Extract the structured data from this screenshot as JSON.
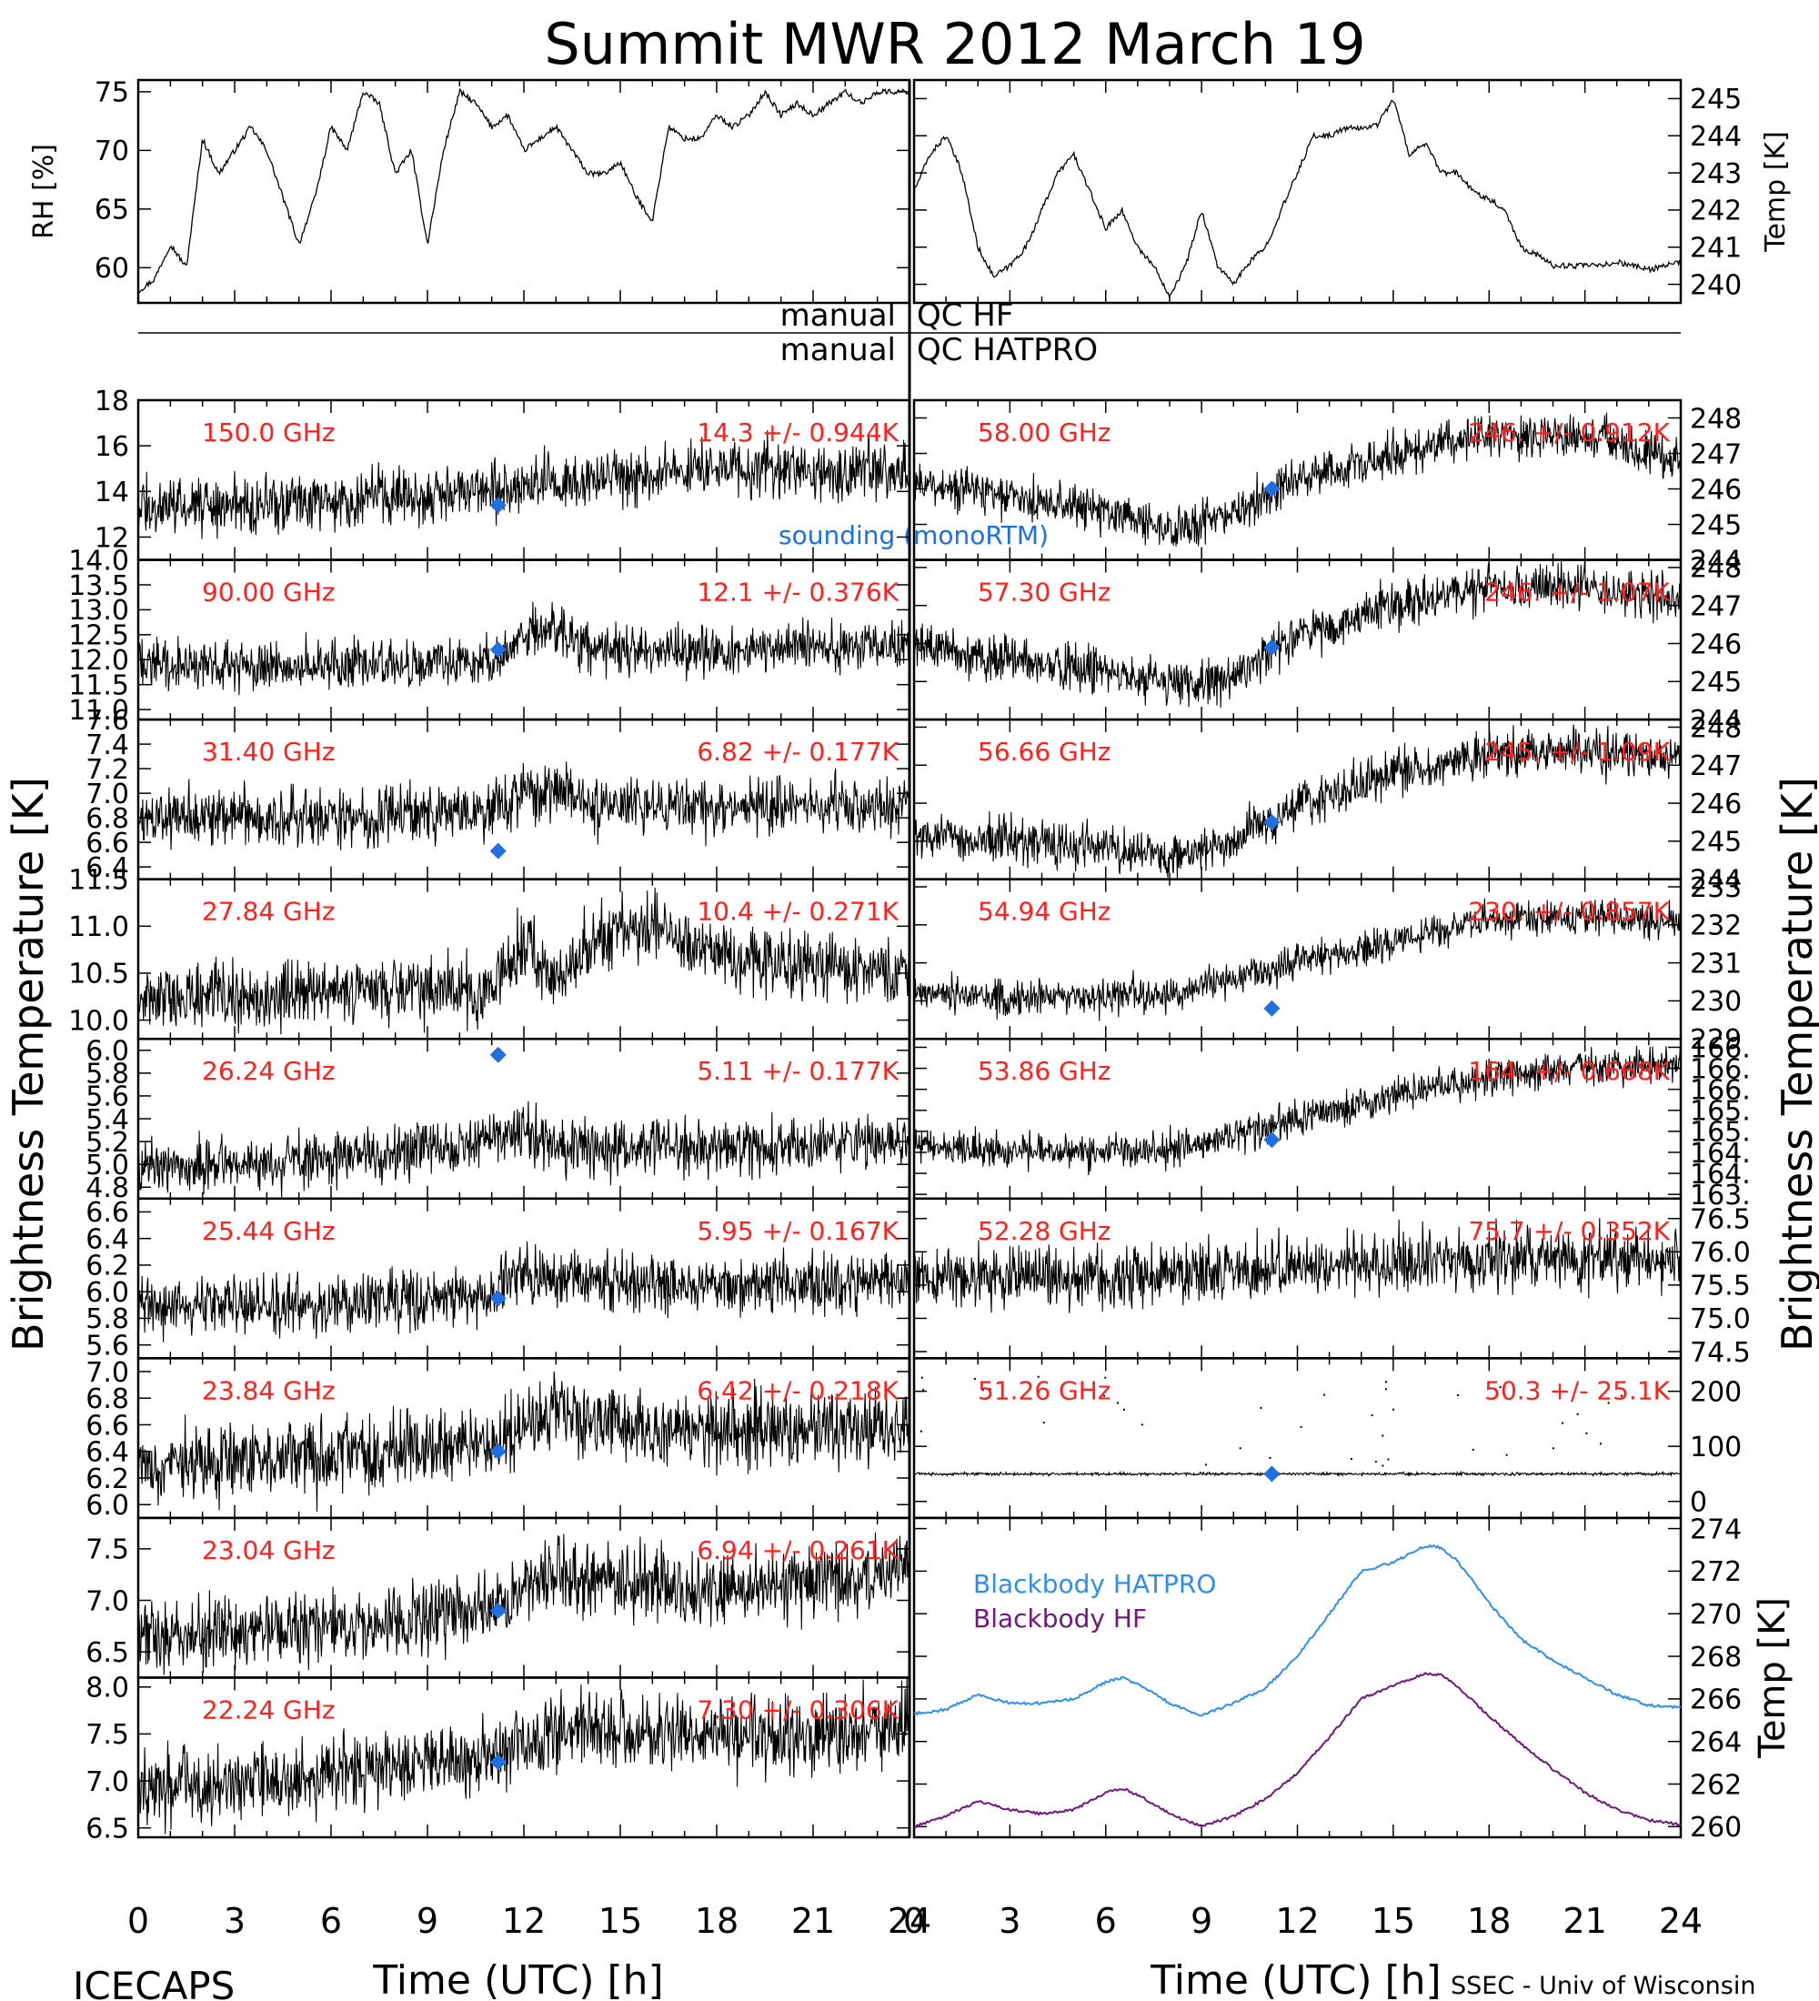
{
  "figure": {
    "title": "Summit MWR 2012 March 19",
    "footer_left": "ICECAPS",
    "footer_right": "SSEC - Univ of Wisconsin",
    "left_ylabel": "Brightness Temperature [K]",
    "right_ylabel": "Brightness Temperature [K]",
    "xlabel": "Time (UTC) [h]",
    "qc_row1_left": "manual",
    "qc_row1_right": "QC HF",
    "qc_row2_left": "manual",
    "qc_row2_right": "QC HATPRO",
    "sounding_label": "sounding (monoRTM)",
    "colors": {
      "sounding": "#1f6fe0",
      "label_red": "#ff2020",
      "hatpro": "#2f8ef0",
      "hf": "#6e1a7a",
      "trace": "#000000"
    }
  },
  "chart_data": [
    {
      "id": "rh",
      "type": "line",
      "ylabel": "RH [%]",
      "xlim": [
        0,
        24
      ],
      "ylim": [
        57,
        76
      ],
      "yticks": [
        60,
        65,
        70,
        75
      ],
      "xticks": [
        0,
        3,
        6,
        9,
        12,
        15,
        18,
        21,
        24
      ],
      "x": [
        0,
        0.5,
        1,
        1.5,
        2,
        2.5,
        3,
        3.5,
        4,
        4.5,
        5,
        5.5,
        6,
        6.5,
        7,
        7.5,
        8,
        8.5,
        9,
        9.5,
        10,
        10.5,
        11,
        11.5,
        12,
        12.5,
        13,
        13.5,
        14,
        14.5,
        15,
        15.5,
        16,
        16.5,
        17,
        17.5,
        18,
        18.5,
        19,
        19.5,
        20,
        20.5,
        21,
        21.5,
        22,
        22.5,
        23,
        23.5,
        24
      ],
      "y": [
        58,
        59,
        62,
        60,
        71,
        68,
        70,
        72,
        70,
        66,
        62,
        66,
        72,
        70,
        75,
        74,
        68,
        70,
        62,
        70,
        75,
        74,
        72,
        73,
        70,
        71,
        72,
        70,
        68,
        68,
        69,
        66,
        64,
        72,
        71,
        71,
        73,
        72,
        73,
        75,
        73,
        74,
        73,
        74,
        75,
        74,
        75,
        75,
        75
      ]
    },
    {
      "id": "temp",
      "type": "line",
      "ylabel": "Temp [K]",
      "xlim": [
        0,
        24
      ],
      "ylim": [
        239.5,
        245.5
      ],
      "yticks": [
        240,
        241,
        242,
        243,
        244,
        245
      ],
      "x": [
        0,
        0.5,
        1,
        1.5,
        2,
        2.5,
        3,
        3.5,
        4,
        4.5,
        5,
        5.5,
        6,
        6.5,
        7,
        7.5,
        8,
        8.5,
        9,
        9.5,
        10,
        10.5,
        11,
        11.5,
        12,
        12.5,
        13,
        13.5,
        14,
        14.5,
        15,
        15.5,
        16,
        16.5,
        17,
        17.5,
        18,
        18.5,
        19,
        19.5,
        20,
        20.5,
        21,
        21.5,
        22,
        22.5,
        23,
        23.5,
        24
      ],
      "y": [
        242.5,
        243.5,
        244,
        243,
        241,
        240.2,
        240.5,
        241,
        242,
        243,
        243.5,
        242.5,
        241.5,
        242,
        241,
        240.5,
        239.7,
        240.5,
        242,
        240.5,
        240,
        240.6,
        241,
        242,
        243,
        244,
        244,
        244.2,
        244.2,
        244.3,
        245,
        243.5,
        243.8,
        243,
        243,
        242.5,
        242.3,
        242,
        241,
        240.8,
        240.5,
        240.5,
        240.5,
        240.5,
        240.6,
        240.5,
        240.4,
        240.5,
        240.6
      ]
    },
    {
      "id": "tb_150.0",
      "type": "line",
      "label": "150.0 GHz",
      "stats": "14.3 +/- 0.944K",
      "ylim": [
        11,
        18
      ],
      "yticks": [
        12,
        14,
        16,
        18
      ],
      "yticklabels": [
        "12",
        "14",
        "16",
        "18"
      ],
      "noise": 0.944,
      "sounding": {
        "x": 11.2,
        "y": 13.4
      },
      "x": [
        0,
        6,
        12,
        18,
        24
      ],
      "y": [
        13.3,
        13.6,
        14.3,
        15.0,
        14.8
      ]
    },
    {
      "id": "tb_90.00",
      "type": "line",
      "label": "90.00 GHz",
      "stats": "12.1 +/- 0.376K",
      "ylim": [
        10.8,
        14.0
      ],
      "yticks": [
        11.0,
        11.5,
        12.0,
        12.5,
        13.0,
        13.5,
        14.0
      ],
      "yticklabels": [
        "11.0",
        "11.5",
        "12.0",
        "12.5",
        "13.0",
        "13.5",
        "14.0"
      ],
      "noise": 0.376,
      "sounding": {
        "x": 11.2,
        "y": 12.2
      },
      "x": [
        0,
        6,
        11,
        12,
        13,
        14,
        18,
        24
      ],
      "y": [
        11.9,
        11.9,
        12.0,
        12.5,
        12.6,
        12.2,
        12.2,
        12.3
      ]
    },
    {
      "id": "tb_31.40",
      "type": "line",
      "label": "31.40 GHz",
      "stats": "6.82 +/- 0.177K",
      "ylim": [
        6.3,
        7.6
      ],
      "yticks": [
        6.4,
        6.6,
        6.8,
        7.0,
        7.2,
        7.4,
        7.6
      ],
      "yticklabels": [
        "6.4",
        "6.6",
        "6.8",
        "7.0",
        "7.2",
        "7.4",
        "7.6"
      ],
      "noise": 0.177,
      "sounding": {
        "x": 11.2,
        "y": 6.53
      },
      "x": [
        0,
        6,
        11,
        12,
        13,
        14,
        18,
        24
      ],
      "y": [
        6.8,
        6.8,
        6.85,
        7.0,
        7.0,
        6.9,
        6.9,
        6.9
      ]
    },
    {
      "id": "tb_27.84",
      "type": "line",
      "label": "27.84 GHz",
      "stats": "10.4 +/- 0.271K",
      "ylim": [
        9.8,
        11.5
      ],
      "yticks": [
        10.0,
        10.5,
        11.0,
        11.5
      ],
      "yticklabels": [
        "10.0",
        "10.5",
        "11.0",
        "11.5"
      ],
      "noise": 0.271,
      "sounding": null,
      "x": [
        0,
        6,
        11,
        12,
        13,
        14,
        16,
        18,
        21,
        24
      ],
      "y": [
        10.2,
        10.3,
        10.35,
        10.8,
        10.4,
        10.8,
        11.0,
        10.7,
        10.6,
        10.5
      ]
    },
    {
      "id": "tb_26.24",
      "type": "line",
      "label": "26.24 GHz",
      "stats": "5.11 +/- 0.177K",
      "ylim": [
        4.7,
        6.1
      ],
      "yticks": [
        4.8,
        5.0,
        5.2,
        5.4,
        5.6,
        5.8,
        6.0
      ],
      "yticklabels": [
        "4.8",
        "5.0",
        "5.2",
        "5.4",
        "5.6",
        "5.8",
        "6.0"
      ],
      "noise": 0.177,
      "sounding": {
        "x": 11.2,
        "y": 5.96
      },
      "x": [
        0,
        6,
        11,
        12,
        13,
        18,
        24
      ],
      "y": [
        5.0,
        5.05,
        5.2,
        5.3,
        5.15,
        5.15,
        5.2
      ]
    },
    {
      "id": "tb_25.44",
      "type": "line",
      "label": "25.44 GHz",
      "stats": "5.95 +/- 0.167K",
      "ylim": [
        5.5,
        6.7
      ],
      "yticks": [
        5.6,
        5.8,
        6.0,
        6.2,
        6.4,
        6.6
      ],
      "yticklabels": [
        "5.6",
        "5.8",
        "6.0",
        "6.2",
        "6.4",
        "6.6"
      ],
      "noise": 0.167,
      "sounding": {
        "x": 11.2,
        "y": 5.95
      },
      "x": [
        0,
        6,
        11,
        12,
        13,
        18,
        24
      ],
      "y": [
        5.9,
        5.9,
        6.0,
        6.15,
        6.1,
        6.05,
        6.1
      ]
    },
    {
      "id": "tb_23.84",
      "type": "line",
      "label": "23.84 GHz",
      "stats": "6.42 +/- 0.218K",
      "ylim": [
        5.9,
        7.1
      ],
      "yticks": [
        6.0,
        6.2,
        6.4,
        6.6,
        6.8,
        7.0
      ],
      "yticklabels": [
        "6.0",
        "6.2",
        "6.4",
        "6.6",
        "6.8",
        "7.0"
      ],
      "noise": 0.218,
      "sounding": {
        "x": 11.2,
        "y": 6.4
      },
      "x": [
        0,
        6,
        11,
        12,
        13,
        14,
        18,
        24
      ],
      "y": [
        6.3,
        6.35,
        6.45,
        6.6,
        6.75,
        6.6,
        6.55,
        6.6
      ]
    },
    {
      "id": "tb_23.04",
      "type": "line",
      "label": "23.04 GHz",
      "stats": "6.94 +/- 0.261K",
      "ylim": [
        6.25,
        7.8
      ],
      "yticks": [
        6.5,
        7.0,
        7.5
      ],
      "yticklabels": [
        "6.5",
        "7.0",
        "7.5"
      ],
      "noise": 0.261,
      "sounding": {
        "x": 11.2,
        "y": 6.9
      },
      "x": [
        0,
        6,
        11,
        12,
        13,
        14,
        18,
        24
      ],
      "y": [
        6.65,
        6.75,
        6.9,
        7.1,
        7.25,
        7.2,
        7.1,
        7.25
      ]
    },
    {
      "id": "tb_22.24",
      "type": "line",
      "label": "22.24 GHz",
      "stats": "7.30 +/- 0.306K",
      "ylim": [
        6.4,
        8.1
      ],
      "yticks": [
        6.5,
        7.0,
        7.5,
        8.0
      ],
      "yticklabels": [
        "6.5",
        "7.0",
        "7.5",
        "8.0"
      ],
      "noise": 0.306,
      "sounding": {
        "x": 11.2,
        "y": 7.2
      },
      "x": [
        0,
        6,
        11,
        12,
        13,
        14,
        18,
        24
      ],
      "y": [
        6.9,
        7.05,
        7.25,
        7.4,
        7.5,
        7.55,
        7.45,
        7.6
      ]
    },
    {
      "id": "tb_58.00",
      "type": "line",
      "label": "58.00 GHz",
      "stats": "246. +/- 0.912K",
      "ylim": [
        244,
        248.5
      ],
      "yticks": [
        244,
        245,
        246,
        247,
        248
      ],
      "yticklabels": [
        "244",
        "245",
        "246",
        "247",
        "248"
      ],
      "noise": 0.45,
      "sounding": {
        "x": 11.2,
        "y": 246.0
      },
      "x": [
        0,
        3,
        6,
        8,
        10,
        12,
        15,
        18,
        21,
        24
      ],
      "y": [
        246.2,
        245.8,
        245.4,
        244.8,
        245.3,
        246.3,
        247.0,
        247.5,
        247.5,
        246.8
      ]
    },
    {
      "id": "tb_57.30",
      "type": "line",
      "label": "57.30 GHz",
      "stats": "246. +/- 1.07K",
      "ylim": [
        244,
        248.2
      ],
      "yticks": [
        244,
        245,
        246,
        247,
        248
      ],
      "yticklabels": [
        "244",
        "245",
        "246",
        "247",
        "248"
      ],
      "noise": 0.45,
      "sounding": {
        "x": 11.2,
        "y": 245.9
      },
      "x": [
        0,
        3,
        6,
        8,
        10,
        12,
        15,
        18,
        21,
        24
      ],
      "y": [
        245.9,
        245.6,
        245.3,
        244.9,
        245.1,
        246.2,
        247.0,
        247.5,
        247.5,
        247.1
      ]
    },
    {
      "id": "tb_56.66",
      "type": "line",
      "label": "56.66 GHz",
      "stats": "245. +/- 1.09K",
      "ylim": [
        244,
        248.2
      ],
      "yticks": [
        244,
        245,
        246,
        247,
        248
      ],
      "yticklabels": [
        "244",
        "245",
        "246",
        "247",
        "248"
      ],
      "noise": 0.45,
      "sounding": {
        "x": 11.2,
        "y": 245.5
      },
      "x": [
        0,
        3,
        6,
        8,
        10,
        12,
        15,
        18,
        21,
        24
      ],
      "y": [
        245.2,
        245.0,
        244.8,
        244.6,
        245.0,
        246.0,
        246.8,
        247.3,
        247.4,
        247.2
      ]
    },
    {
      "id": "tb_54.94",
      "type": "line",
      "label": "54.94 GHz",
      "stats": "230. +/- 0.857K",
      "ylim": [
        229,
        233.2
      ],
      "yticks": [
        229,
        230,
        231,
        232,
        233
      ],
      "yticklabels": [
        "229",
        "230",
        "231",
        "232",
        "233"
      ],
      "noise": 0.35,
      "sounding": {
        "x": 11.2,
        "y": 229.8
      },
      "x": [
        0,
        3,
        6,
        8,
        10,
        12,
        15,
        18,
        21,
        24
      ],
      "y": [
        230.2,
        230.1,
        230.1,
        230.2,
        230.6,
        231.0,
        231.6,
        232.1,
        232.2,
        232.1
      ]
    },
    {
      "id": "tb_53.86",
      "type": "line",
      "label": "53.86 GHz",
      "stats": "164. +/- 0.668K",
      "ylim": [
        162.9,
        166.7
      ],
      "yticks": [
        163,
        163.5,
        164,
        164.5,
        165,
        165.5,
        166,
        166.5
      ],
      "yticklabels": [
        "163.",
        "164.",
        "164.",
        "165.",
        "165.",
        "166.",
        "166.",
        "166."
      ],
      "noise": 0.33,
      "sounding": {
        "x": 11.2,
        "y": 164.3
      },
      "x": [
        0,
        3,
        6,
        8,
        10,
        12,
        15,
        18,
        21,
        24
      ],
      "y": [
        164.2,
        164.0,
        164.0,
        164.1,
        164.4,
        164.8,
        165.3,
        165.8,
        166.0,
        166.1
      ]
    },
    {
      "id": "tb_52.28",
      "type": "line",
      "label": "52.28 GHz",
      "stats": "75.7 +/- 0.352K",
      "ylim": [
        74.4,
        76.8
      ],
      "yticks": [
        74.5,
        75.0,
        75.5,
        76.0,
        76.5
      ],
      "yticklabels": [
        "74.5",
        "75.0",
        "75.5",
        "76.0",
        "76.5"
      ],
      "noise": 0.35,
      "sounding": null,
      "x": [
        0,
        6,
        12,
        18,
        24
      ],
      "y": [
        75.6,
        75.6,
        75.8,
        75.9,
        75.9
      ]
    },
    {
      "id": "tb_51.26",
      "type": "scatter",
      "label": "51.26 GHz",
      "stats": "50.3 +/- 25.1K",
      "ylim": [
        -30,
        260
      ],
      "yticks": [
        0,
        100,
        200
      ],
      "yticklabels": [
        "0",
        "100",
        "200"
      ],
      "noise": 2,
      "sounding": {
        "x": 11.2,
        "y": 50
      },
      "x": [
        0,
        24
      ],
      "y": [
        50,
        50
      ]
    },
    {
      "id": "blackbody",
      "type": "line",
      "ylabel": "Temp [K]",
      "xlim": [
        0,
        24
      ],
      "ylim": [
        259.5,
        274.5
      ],
      "yticks": [
        260,
        262,
        264,
        266,
        268,
        270,
        272,
        274
      ],
      "xticks": [
        0,
        3,
        6,
        9,
        12,
        15,
        18,
        21,
        24
      ],
      "series": [
        {
          "name": "Blackbody HATPRO",
          "x": [
            0,
            1,
            2,
            3,
            4,
            5,
            6,
            6.5,
            7,
            8,
            9,
            10,
            11,
            12,
            13,
            14,
            15,
            16,
            16.5,
            17,
            18,
            19,
            20,
            21,
            22,
            23,
            24
          ],
          "y": [
            265.3,
            265.5,
            266.2,
            265.8,
            265.8,
            266.0,
            266.8,
            267.0,
            266.7,
            265.8,
            265.2,
            265.8,
            266.5,
            268.0,
            270.0,
            272.0,
            272.4,
            273.2,
            273.1,
            272.5,
            270.5,
            268.8,
            267.8,
            267.0,
            266.2,
            265.7,
            265.6
          ]
        },
        {
          "name": "Blackbody HF",
          "x": [
            0,
            1,
            2,
            3,
            4,
            5,
            6,
            6.5,
            7,
            8,
            9,
            10,
            11,
            12,
            13,
            14,
            15,
            16,
            16.5,
            17,
            18,
            19,
            20,
            21,
            22,
            23,
            24
          ],
          "y": [
            260.0,
            260.5,
            261.2,
            260.8,
            260.6,
            260.8,
            261.6,
            261.8,
            261.5,
            260.6,
            260.0,
            260.5,
            261.3,
            262.5,
            264.2,
            266.0,
            266.6,
            267.2,
            267.1,
            266.6,
            265.2,
            263.9,
            262.7,
            261.6,
            260.8,
            260.3,
            260.1
          ]
        }
      ]
    }
  ]
}
